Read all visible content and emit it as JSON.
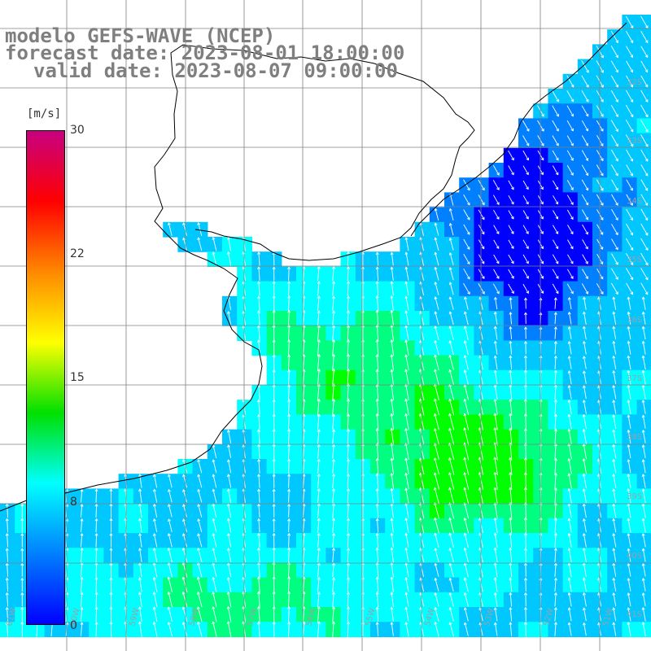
{
  "title": {
    "line1": "modelo GEFS-WAVE (NCEP)",
    "line2": "forecast date: 2023-08-01 18:00:00",
    "line3": "valid date: 2023-08-07 09:00:00"
  },
  "colorbar": {
    "unit": "[m/s]",
    "ticks": [
      "30",
      "22",
      "15",
      "8",
      "0"
    ],
    "gradient": [
      "#c70080",
      "#ff0000",
      "#ff8800",
      "#ffff00",
      "#00e000",
      "#00ffff",
      "#0080ff",
      "#0000ff"
    ]
  },
  "map": {
    "land_color": "#ffffff",
    "coast_color": "#000000",
    "grid_color": "#808080",
    "arrow_color": "#ffffff",
    "wind_palette": [
      "#0000ff",
      "#0080ff",
      "#00c8ff",
      "#00ffff",
      "#00ff80",
      "#00ff00"
    ],
    "lat_labels": [
      "32S",
      "33S",
      "34S",
      "35S",
      "36S",
      "37S",
      "38S",
      "39S",
      "40S",
      "41S"
    ],
    "lon_labels": [
      "61W",
      "60W",
      "59W",
      "58W",
      "57W",
      "56W",
      "55W",
      "54W",
      "53W",
      "52W",
      "51W"
    ]
  }
}
